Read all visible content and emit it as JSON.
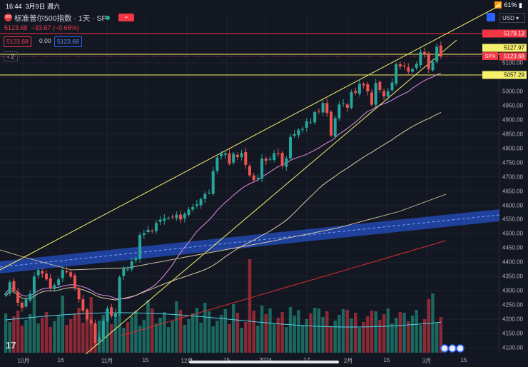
{
  "status_bar": {
    "time": "16:44",
    "date": "3月9日 週六",
    "battery": "61%"
  },
  "header": {
    "title": "标准普尔500指数 · 1天 · SP",
    "badge": "≈",
    "logo_text": "500",
    "price": "5123.68",
    "change": "−33.67 (−0.65%)",
    "sell": "5123.68",
    "spread": "0.00",
    "buy": "5123.68",
    "indicators_count": "2"
  },
  "currency": "USD",
  "price_axis": [
    "5100.00",
    "5000.00",
    "4950.00",
    "4900.00",
    "4850.00",
    "4800.00",
    "4750.00",
    "4700.00",
    "4650.00",
    "4600.00",
    "4550.00",
    "4500.00",
    "4450.00",
    "4400.00",
    "4350.00",
    "4300.00",
    "4250.00",
    "4200.00",
    "4150.00",
    "4100.00"
  ],
  "price_tags": {
    "alert": "5179.13",
    "high": "5127.97",
    "symbol": "SPX",
    "last": "5123.68",
    "support": "5057.29"
  },
  "time_axis": [
    "10月",
    "16",
    "11月",
    "15",
    "12月",
    "15",
    "2024",
    "17",
    "2月",
    "15",
    "3月",
    "15"
  ],
  "chart_data": {
    "type": "candlestick",
    "symbol": "SPX",
    "interval": "1天",
    "ylim": [
      4080,
      5200
    ],
    "closes": [
      4290,
      4330,
      4300,
      4258,
      4240,
      4270,
      4290,
      4350,
      4373,
      4360,
      4340,
      4310,
      4320,
      4340,
      4373,
      4365,
      4350,
      4310,
      4270,
      4230,
      4200,
      4186,
      4117,
      4137,
      4194,
      4238,
      4211,
      4224,
      4348,
      4378,
      4375,
      4403,
      4415,
      4496,
      4502,
      4514,
      4509,
      4538,
      4550,
      4554,
      4556,
      4559,
      4567,
      4550,
      4570,
      4585,
      4594,
      4604,
      4622,
      4640,
      4644,
      4720,
      4768,
      4781,
      4782,
      4746,
      4781,
      4769,
      4783,
      4742,
      4705,
      4689,
      4697,
      4764,
      4756,
      4763,
      4783,
      4780,
      4739,
      4765,
      4840,
      4850,
      4865,
      4868,
      4895,
      4891,
      4927,
      4930,
      4959,
      4924,
      4845,
      4906,
      4954,
      4958,
      4942,
      4997,
      4995,
      5026,
      5021,
      5000,
      4953,
      5029,
      5005,
      4982,
      5000,
      5031,
      5095,
      5087,
      5088,
      5069,
      5078,
      5096,
      5138,
      5130,
      5078,
      5104,
      5157,
      5123
    ],
    "volume_note": "volume histogram with moving average"
  }
}
